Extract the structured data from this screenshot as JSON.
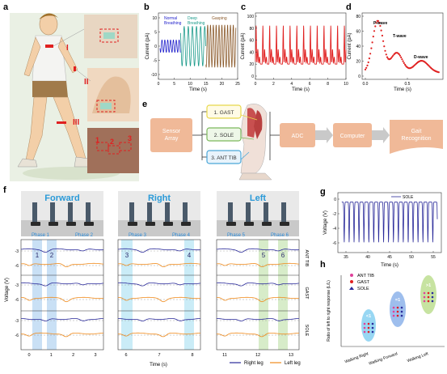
{
  "panels": {
    "a": "a",
    "b": "b",
    "c": "c",
    "d": "d",
    "e": "e",
    "f": "f",
    "g": "g",
    "h": "h"
  },
  "panel_a": {
    "markers": [
      "I",
      "II",
      "III"
    ],
    "sensor_numbers": [
      "1",
      "2",
      "3"
    ]
  },
  "panel_b": {
    "xlabel": "Time (s)",
    "ylabel": "Current (pA)",
    "xticks": [
      "0",
      "5",
      "10",
      "15",
      "20",
      "25"
    ],
    "yticks": [
      "10",
      "5",
      "0",
      "-5",
      "-10"
    ],
    "legend": [
      {
        "text": "Normal\nBreathing",
        "color": "#2222cc"
      },
      {
        "text": "Deep\nBreathing",
        "color": "#1a9a8a"
      },
      {
        "text": "Gasping",
        "color": "#8b5a2b"
      }
    ]
  },
  "panel_c": {
    "xlabel": "Time (s)",
    "ylabel": "Current (pA)",
    "xticks": [
      "0",
      "2",
      "4",
      "6",
      "8",
      "10"
    ],
    "yticks": [
      "100",
      "80",
      "60",
      "40",
      "20",
      "0"
    ],
    "color": "#e02020"
  },
  "panel_d": {
    "xlabel": "Time (s)",
    "ylabel": "Current (pA)",
    "xticks": [
      "0.0",
      "0.5"
    ],
    "yticks": [
      "80",
      "60",
      "40",
      "20",
      "0"
    ],
    "color": "#e02020",
    "annotations": [
      "P-wave",
      "T-wave",
      "D-wave"
    ]
  },
  "panel_e": {
    "sensor_array": "Sensor\nArray",
    "channels": [
      {
        "label": "1. GAST",
        "color": "#e8d84a",
        "fill": "#fffbe6"
      },
      {
        "label": "2. SOLE",
        "color": "#7cb85c",
        "fill": "#eef7e8"
      },
      {
        "label": "3. ANT TIB",
        "color": "#4aa6d8",
        "fill": "#e8f3fb"
      }
    ],
    "adc": "ADC",
    "computer": "Computer",
    "gait": "Gait\nRecognition",
    "box_color": "#f0b998"
  },
  "panel_f": {
    "photo_titles": [
      "Forward",
      "Right",
      "Left"
    ],
    "phases": [
      "Phase 1",
      "Phase 2",
      "Phase 3",
      "Phase 4",
      "Phase 5",
      "Phase 6"
    ],
    "phase_numbers": [
      "1",
      "2",
      "3",
      "4",
      "5",
      "6"
    ],
    "ylabel": "Voltage (V)",
    "xlabel": "Time (s)",
    "yticks": [
      "-3",
      "-6"
    ],
    "xticks_group": [
      [
        "0",
        "1",
        "2",
        "3"
      ],
      [
        "6",
        "7",
        "8"
      ],
      [
        "11",
        "12",
        "13"
      ]
    ],
    "muscle_labels": [
      "ANT TIB",
      "GAST",
      "SOLE"
    ],
    "legend": [
      {
        "name": "Right leg",
        "color": "#2a2a9a"
      },
      {
        "name": "Left leg",
        "color": "#f08a1a"
      }
    ],
    "shade_blue": "#9cc6ec",
    "shade_cyan": "#9fdcf0",
    "shade_green": "#b6dc9c"
  },
  "panel_g": {
    "xlabel": "Time (s)",
    "ylabel": "Voltage (V)",
    "xticks": [
      "35",
      "40",
      "45",
      "50",
      "55"
    ],
    "yticks": [
      "0",
      "-2",
      "-4",
      "-6"
    ],
    "legend": "SOLE",
    "color": "#2a2a9a"
  },
  "panel_h": {
    "ylabel": "Ratio of left to right response (L/L)",
    "xcats": [
      "Walking Right",
      "Walking Forward",
      "Walking Left"
    ],
    "annotations": [
      "<1",
      "=1",
      ">1"
    ],
    "legend": [
      {
        "name": "ANT TIB",
        "color": "#e0409a"
      },
      {
        "name": "GAST",
        "color": "#e02020"
      },
      {
        "name": "SOLE",
        "color": "#2a2a9a"
      }
    ],
    "ellipse_colors": [
      "#7ecdf0",
      "#86aee8",
      "#b9dc8a"
    ]
  }
}
